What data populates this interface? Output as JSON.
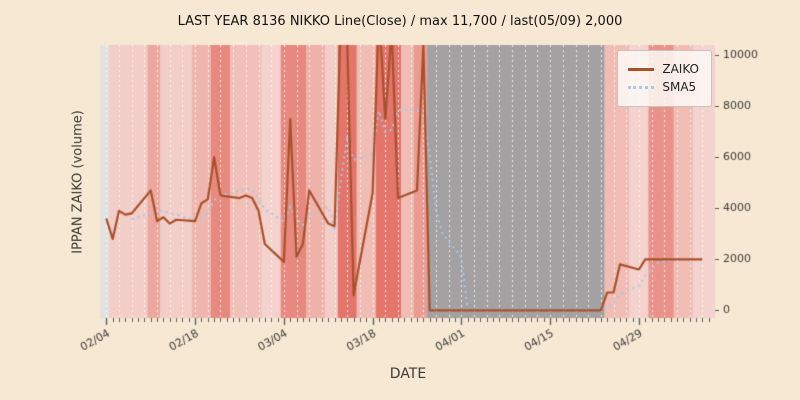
{
  "title": "LAST YEAR 8136 NIKKO Line(Close) / max 11,700 / last(05/09) 2,000",
  "axes": {
    "xlabel": "DATE",
    "ylabel": "IPPAN ZAIKO (volume)"
  },
  "legend": {
    "items": [
      {
        "label": "ZAIKO"
      },
      {
        "label": "SMA5"
      }
    ]
  },
  "colors": {
    "figure_bg": "#f7e8d3",
    "plot_bg": "#f5d6d1",
    "zaiko_line": "#a8512d",
    "sma5_line": "#a9c9e4",
    "grid_line": "rgba(255,255,255,0.8)",
    "tick_text": "#3d3b39",
    "nodata_gray": "#a3a1a1"
  },
  "chart_data": {
    "type": "line",
    "x_axis": {
      "label": "DATE",
      "tick_labels": [
        "02/04",
        "02/18",
        "03/04",
        "03/18",
        "04/01",
        "04/15",
        "04/29"
      ],
      "tick_days": [
        0,
        14,
        28,
        42,
        56,
        70,
        84
      ],
      "unit": "calendar day offset from 02/04",
      "lim": [
        -1,
        96
      ]
    },
    "y_axis": {
      "ticks": [
        0,
        2000,
        4000,
        6000,
        8000,
        10000
      ],
      "lim": [
        -300,
        10400
      ]
    },
    "dates": [
      "02/04",
      "02/05",
      "02/06",
      "02/07",
      "02/08",
      "02/11",
      "02/12",
      "02/13",
      "02/14",
      "02/15",
      "02/18",
      "02/19",
      "02/20",
      "02/21",
      "02/22",
      "02/25",
      "02/26",
      "02/27",
      "02/28",
      "03/01",
      "03/04",
      "03/05",
      "03/06",
      "03/07",
      "03/08",
      "03/11",
      "03/12",
      "03/13",
      "03/14",
      "03/15",
      "03/18",
      "03/19",
      "03/20",
      "03/21",
      "03/22",
      "03/25",
      "03/26",
      "03/27",
      "03/28",
      "03/29",
      "04/01",
      "04/02",
      "04/03",
      "04/04",
      "04/05",
      "04/08",
      "04/09",
      "04/10",
      "04/11",
      "04/12",
      "04/15",
      "04/16",
      "04/17",
      "04/18",
      "04/19",
      "04/22",
      "04/23",
      "04/24",
      "04/25",
      "04/26",
      "04/29",
      "04/30",
      "05/01",
      "05/02",
      "05/03",
      "05/06",
      "05/07",
      "05/08",
      "05/09"
    ],
    "days": [
      0,
      1,
      2,
      3,
      4,
      7,
      8,
      9,
      10,
      11,
      14,
      15,
      16,
      17,
      18,
      21,
      22,
      23,
      24,
      25,
      28,
      29,
      30,
      31,
      32,
      35,
      36,
      37,
      38,
      39,
      42,
      43,
      44,
      45,
      46,
      49,
      50,
      51,
      52,
      53,
      56,
      57,
      58,
      59,
      60,
      63,
      64,
      65,
      66,
      67,
      70,
      71,
      72,
      73,
      74,
      77,
      78,
      79,
      80,
      81,
      84,
      85,
      86,
      87,
      88,
      91,
      92,
      93,
      94
    ],
    "series": [
      {
        "name": "ZAIKO",
        "style": "solid",
        "color": "#a8512d",
        "values": [
          3600,
          2800,
          3900,
          3750,
          3800,
          4700,
          3500,
          3650,
          3400,
          3550,
          3500,
          4200,
          4350,
          6000,
          4500,
          4400,
          4500,
          4400,
          3900,
          2600,
          1900,
          7500,
          2100,
          2600,
          4700,
          3400,
          3300,
          11700,
          10500,
          600,
          4600,
          11700,
          7500,
          11000,
          4400,
          4700,
          10400,
          0,
          0,
          0,
          0,
          0,
          0,
          0,
          0,
          0,
          0,
          0,
          0,
          0,
          0,
          0,
          0,
          0,
          0,
          0,
          0,
          700,
          700,
          1800,
          1600,
          2000,
          2000,
          2000,
          2000,
          2000,
          2000,
          2000,
          2000
        ]
      },
      {
        "name": "SMA5",
        "style": "dotted",
        "color": "#a9c9e4",
        "derived_from": "5-point moving average of ZAIKO"
      }
    ],
    "background_bands": [
      {
        "from_day": -1,
        "to_day": 0.5,
        "color": "#e3e0e0"
      },
      {
        "from_day": 0.5,
        "to_day": 6.5,
        "color": "#f3cdc8"
      },
      {
        "from_day": 6.5,
        "to_day": 8.5,
        "color": "#eca79e"
      },
      {
        "from_day": 8.5,
        "to_day": 13.5,
        "color": "#f3cdc8"
      },
      {
        "from_day": 13.5,
        "to_day": 16.5,
        "color": "#efb6ad"
      },
      {
        "from_day": 16.5,
        "to_day": 19.5,
        "color": "#e8897f"
      },
      {
        "from_day": 19.5,
        "to_day": 24.5,
        "color": "#f1c0b9"
      },
      {
        "from_day": 24.5,
        "to_day": 27.5,
        "color": "#f4d2cd"
      },
      {
        "from_day": 27.5,
        "to_day": 31.5,
        "color": "#e8897f"
      },
      {
        "from_day": 31.5,
        "to_day": 34.5,
        "color": "#efb2a9"
      },
      {
        "from_day": 34.5,
        "to_day": 36.5,
        "color": "#f3cdc8"
      },
      {
        "from_day": 36.5,
        "to_day": 39.5,
        "color": "#e3756b"
      },
      {
        "from_day": 39.5,
        "to_day": 42.5,
        "color": "#f0bcb4"
      },
      {
        "from_day": 42.5,
        "to_day": 46.5,
        "color": "#e3756b"
      },
      {
        "from_day": 46.5,
        "to_day": 48.5,
        "color": "#f0bcb4"
      },
      {
        "from_day": 48.5,
        "to_day": 50.6,
        "color": "#ea9c93"
      },
      {
        "from_day": 50.6,
        "to_day": 78.6,
        "color": "#a3a1a1"
      },
      {
        "from_day": 78.6,
        "to_day": 82.5,
        "color": "#f0bcb4"
      },
      {
        "from_day": 82.5,
        "to_day": 85.5,
        "color": "#f4d2cd"
      },
      {
        "from_day": 85.5,
        "to_day": 89.5,
        "color": "#e9928a"
      },
      {
        "from_day": 89.5,
        "to_day": 92.5,
        "color": "#f0bcb4"
      },
      {
        "from_day": 92.5,
        "to_day": 96,
        "color": "#f4d2cd"
      }
    ],
    "annotations": {
      "max": "11,700",
      "last_date": "05/09",
      "last_value": "2,000"
    }
  }
}
